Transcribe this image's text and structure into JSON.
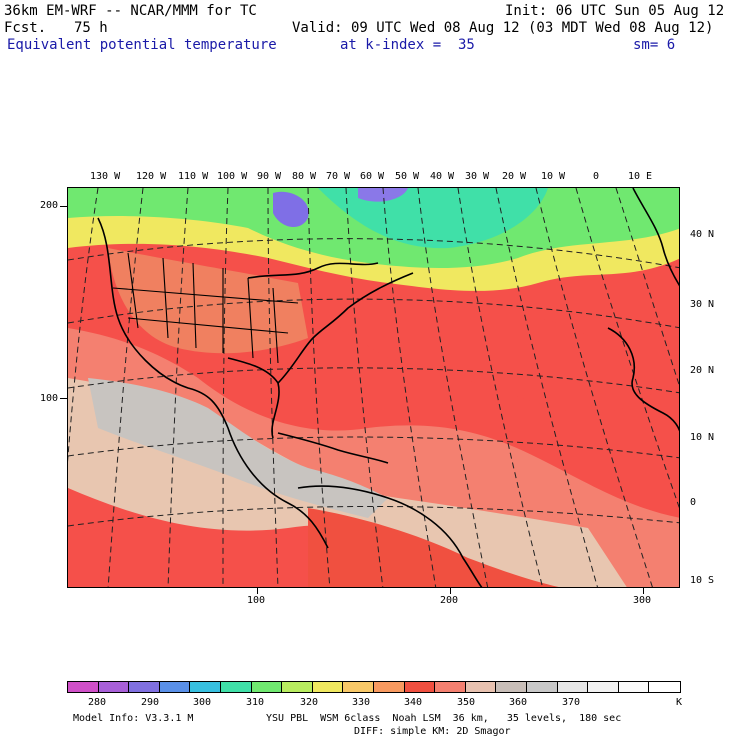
{
  "header": {
    "model": "36km EM-WRF -- NCAR/MMM for TC",
    "init": "Init: 06 UTC Sun 05 Aug 12",
    "fcst_label": "Fcst.",
    "fcst_hours": "75 h",
    "valid": "Valid: 09 UTC Wed 08 Aug 12 (03 MDT Wed 08 Aug 12)",
    "field": "Equivalent potential temperature",
    "level": "at k-index =  35",
    "smoothing": "sm= 6"
  },
  "map": {
    "lon_labels": [
      "130 W",
      "120 W",
      "110 W",
      "100 W",
      "90 W",
      "80 W",
      "70 W",
      "60 W",
      "50 W",
      "40 W",
      "30 W",
      "20 W",
      "10 W",
      "0",
      "10 E"
    ],
    "lat_labels": [
      "40 N",
      "30 N",
      "20 N",
      "10 N",
      "0",
      "10 S"
    ],
    "left_axis_labels": [
      "200",
      "100"
    ],
    "bottom_axis_labels": [
      "100",
      "200",
      "300"
    ],
    "regions": [
      {
        "name": "hudson-bay-low",
        "color": "#7f6fe6"
      },
      {
        "name": "north-cool",
        "color": "#6ee07a"
      },
      {
        "name": "warm-ocean",
        "color": "#f5504a"
      },
      {
        "name": "tropics-grey",
        "color": "#c8c4c0"
      },
      {
        "name": "tropics-tan",
        "color": "#e8c6b0"
      }
    ]
  },
  "colorbar": {
    "colors": [
      "#d050c8",
      "#a860d8",
      "#8070e0",
      "#5a90e8",
      "#38c0e0",
      "#40e0a8",
      "#70e870",
      "#b8ec60",
      "#f0e860",
      "#f8c868",
      "#f89a60",
      "#f05040",
      "#f48070",
      "#e8c2b0",
      "#c8beb8",
      "#c8c8c8",
      "#e6e6e6",
      "#f2f2f2",
      "#fafafa",
      "#ffffff"
    ],
    "labels": [
      "280",
      "290",
      "300",
      "310",
      "320",
      "330",
      "340",
      "350",
      "360",
      "370"
    ],
    "unit": "K"
  },
  "footer": {
    "model_info": "Model Info: V3.3.1 M",
    "physics_line1": "YSU PBL  WSM 6class  Noah LSM  36 km,   35 levels,  180 sec",
    "physics_line2": "DIFF: simple KM: 2D Smagor"
  }
}
